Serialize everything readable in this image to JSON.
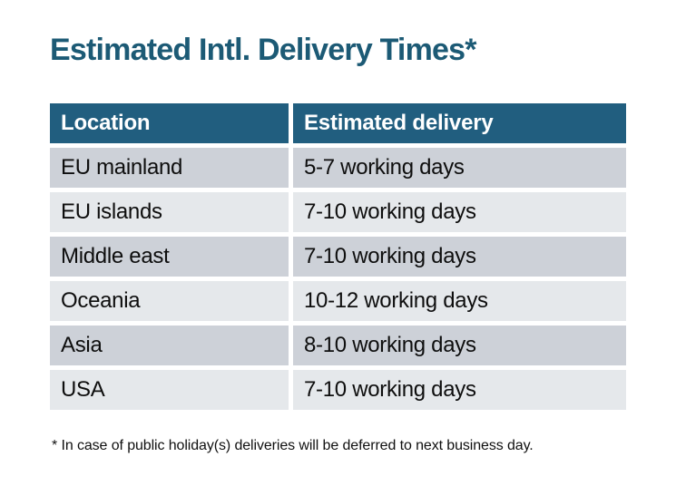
{
  "page": {
    "title": "Estimated Intl. Delivery Times*",
    "footnote": "* In case of public holiday(s) deliveries will be deferred to next business day."
  },
  "chart_data": {
    "type": "table",
    "title": "Estimated Intl. Delivery Times*",
    "columns": [
      "Location",
      "Estimated delivery"
    ],
    "rows": [
      [
        "EU mainland",
        "5-7 working days"
      ],
      [
        "EU islands",
        "7-10 working days"
      ],
      [
        "Middle east",
        "7-10 working days"
      ],
      [
        "Oceania",
        "10-12 working days"
      ],
      [
        "Asia",
        "8-10 working days"
      ],
      [
        "USA",
        "7-10 working days"
      ]
    ],
    "footnote": "* In case of public holiday(s) deliveries will be deferred to next business day.",
    "layout_hints": {
      "header_style": "solid fill, white bold text",
      "row_striping": "alternating dark/light gray starting dark",
      "grid": "white gaps between cells"
    }
  },
  "colors": {
    "bg": "#ffffff",
    "title": "#1c5a75",
    "header-bg": "#215e7f",
    "header-text": "#ffffff",
    "row-dark": "#cdd1d8",
    "row-light": "#e5e8eb"
  }
}
